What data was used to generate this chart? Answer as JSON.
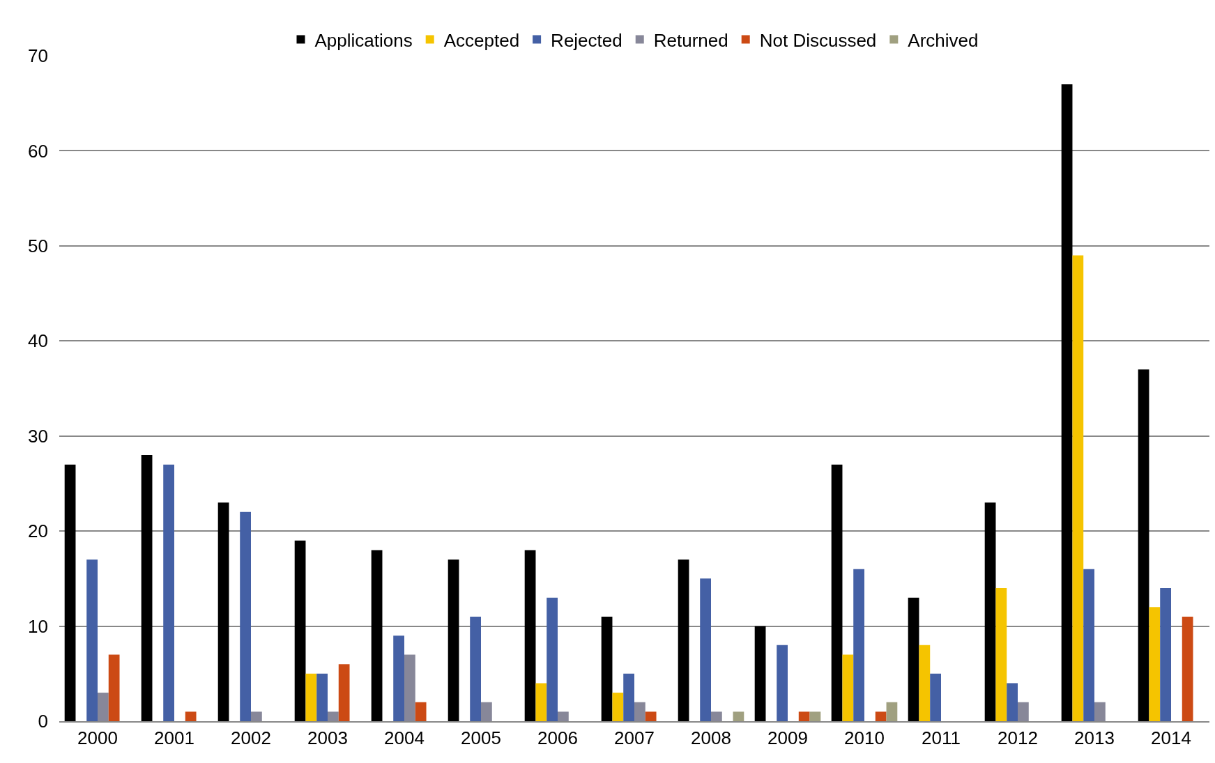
{
  "chart_data": {
    "type": "bar",
    "categories": [
      "2000",
      "2001",
      "2002",
      "2003",
      "2004",
      "2005",
      "2006",
      "2007",
      "2008",
      "2009",
      "2010",
      "2011",
      "2012",
      "2013",
      "2014"
    ],
    "series": [
      {
        "name": "Applications",
        "color": "#000000",
        "values": [
          27,
          28,
          23,
          19,
          18,
          17,
          18,
          11,
          17,
          10,
          27,
          13,
          23,
          67,
          37
        ]
      },
      {
        "name": "Accepted",
        "color": "#f5c400",
        "values": [
          0,
          0,
          0,
          5,
          0,
          0,
          4,
          3,
          0,
          0,
          7,
          8,
          14,
          49,
          12
        ]
      },
      {
        "name": "Rejected",
        "color": "#4460a5",
        "values": [
          17,
          27,
          22,
          5,
          9,
          11,
          13,
          5,
          15,
          8,
          16,
          5,
          4,
          16,
          14
        ]
      },
      {
        "name": "Returned",
        "color": "#878799",
        "values": [
          3,
          0,
          1,
          1,
          7,
          2,
          1,
          2,
          1,
          0,
          0,
          0,
          2,
          2,
          0
        ]
      },
      {
        "name": "Not Discussed",
        "color": "#cc4a14",
        "values": [
          7,
          1,
          0,
          6,
          2,
          0,
          0,
          1,
          0,
          1,
          1,
          0,
          0,
          0,
          11
        ]
      },
      {
        "name": "Archived",
        "color": "#a0a080",
        "values": [
          0,
          0,
          0,
          0,
          0,
          0,
          0,
          0,
          1,
          1,
          2,
          0,
          0,
          0,
          0
        ]
      }
    ],
    "ylim": [
      0,
      70
    ],
    "yticks": [
      0,
      10,
      20,
      30,
      40,
      50,
      60,
      70
    ],
    "grid": "y",
    "legend": "top"
  }
}
